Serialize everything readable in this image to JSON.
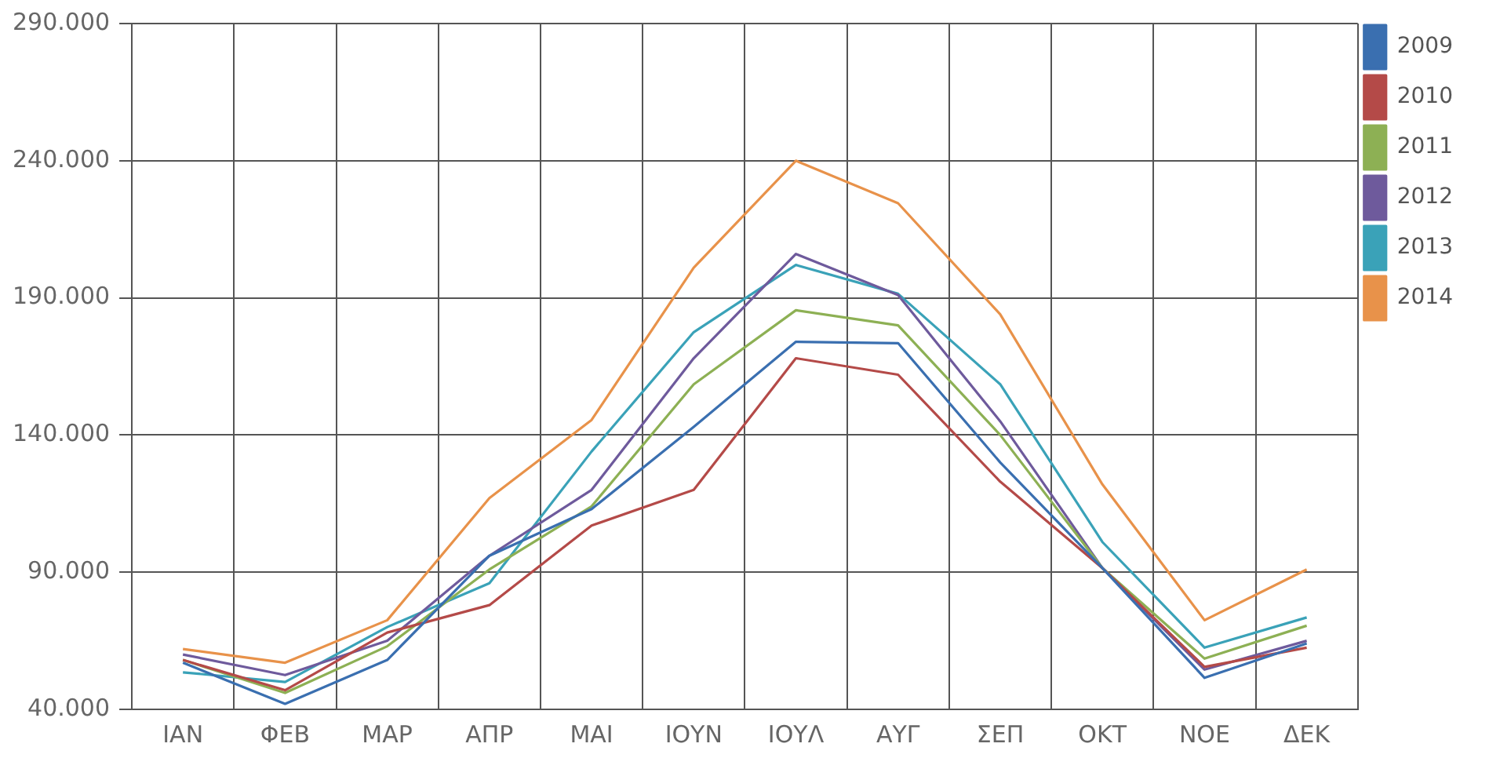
{
  "chart_data": {
    "type": "line",
    "categories": [
      "ΙΑΝ",
      "ΦΕΒ",
      "ΜΑΡ",
      "ΑΠΡ",
      "ΜΑΙ",
      "ΙΟΥΝ",
      "ΙΟΥΛ",
      "ΑΥΓ",
      "ΣΕΠ",
      "ΟΚΤ",
      "ΝΟΕ",
      "ΔΕΚ"
    ],
    "series": [
      {
        "name": "2009",
        "color": "#3a6fb0",
        "values": [
          57000,
          42000,
          58000,
          96000,
          113000,
          143000,
          174000,
          173500,
          130000,
          91500,
          51500,
          64000
        ]
      },
      {
        "name": "2010",
        "color": "#b44a48",
        "values": [
          58000,
          47000,
          68000,
          78000,
          107000,
          120000,
          168000,
          162000,
          123000,
          91500,
          55500,
          62500
        ]
      },
      {
        "name": "2011",
        "color": "#8db054",
        "values": [
          58000,
          46000,
          63000,
          91000,
          114000,
          158500,
          185500,
          180000,
          140000,
          91500,
          58500,
          70500
        ]
      },
      {
        "name": "2012",
        "color": "#6e5a9c",
        "values": [
          60000,
          52500,
          65000,
          96000,
          120000,
          168000,
          206000,
          191000,
          145000,
          91500,
          54500,
          65000
        ]
      },
      {
        "name": "2013",
        "color": "#3aa2b8",
        "values": [
          53500,
          50000,
          70000,
          86000,
          134000,
          177500,
          202000,
          191500,
          158500,
          101000,
          62500,
          73500
        ]
      },
      {
        "name": "2014",
        "color": "#e8924a",
        "values": [
          62000,
          57000,
          72500,
          117000,
          145500,
          201000,
          240000,
          224500,
          184000,
          122000,
          72500,
          91000
        ]
      }
    ],
    "ylim": [
      40000,
      290000
    ],
    "yticks": [
      {
        "value": 40000,
        "label": "40.000"
      },
      {
        "value": 90000,
        "label": "90.000"
      },
      {
        "value": 140000,
        "label": "140.000"
      },
      {
        "value": 190000,
        "label": "190.000"
      },
      {
        "value": 240000,
        "label": "240.000"
      },
      {
        "value": 290000,
        "label": "290.000"
      }
    ],
    "grid": true,
    "legend": "right",
    "marker": "none",
    "line_style": "solid"
  }
}
